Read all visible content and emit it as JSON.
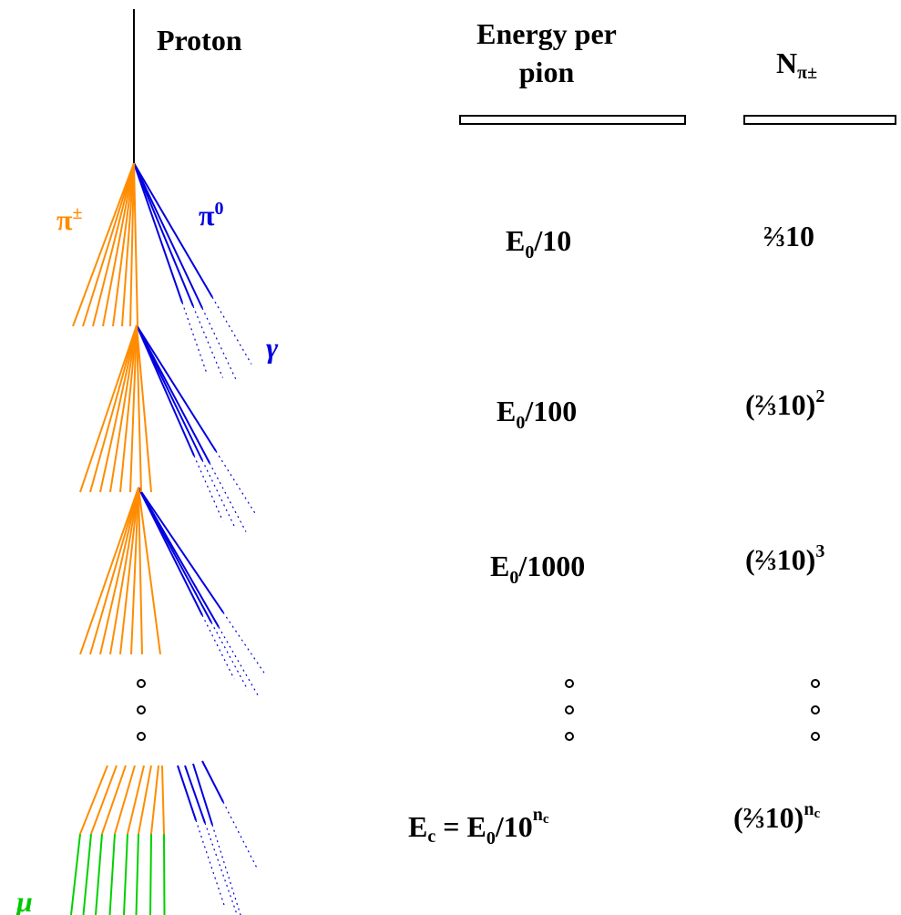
{
  "shower": {
    "primary": "Proton",
    "charged": {
      "main": "π",
      "sup": "±"
    },
    "neutral": {
      "main": "π",
      "sup": "0"
    },
    "photon": "γ",
    "muon": "μ"
  },
  "columns": {
    "energy_header": [
      "Energy per",
      "pion"
    ],
    "count_header": {
      "main": "N",
      "sub": "π±"
    }
  },
  "rows": [
    {
      "energy": {
        "main": "E",
        "sub": "0",
        "after": "/10"
      },
      "count": {
        "text": "⅔10"
      }
    },
    {
      "energy": {
        "main": "E",
        "sub": "0",
        "after": "/100"
      },
      "count": {
        "text": "(⅔10)",
        "sup": "2"
      }
    },
    {
      "energy": {
        "main": "E",
        "sub": "0",
        "after": "/1000"
      },
      "count": {
        "text": "(⅔10)",
        "sup": "3"
      }
    }
  ],
  "final_row": {
    "energy": {
      "main": "E",
      "sub": "c",
      "mid": " = E",
      "sub2": "0",
      "after": "/10",
      "sup": "n",
      "sup_sub": "c"
    },
    "count": {
      "text": "(⅔10)",
      "sup": "n",
      "sup_sub": "c"
    }
  }
}
